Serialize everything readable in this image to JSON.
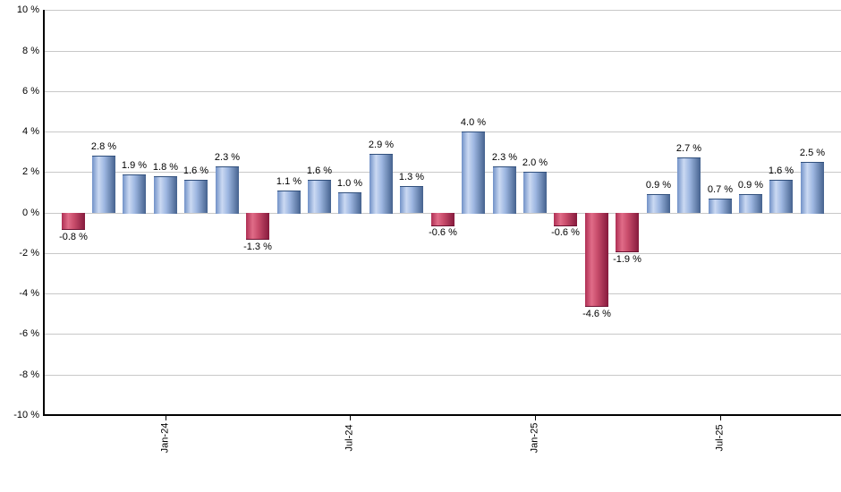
{
  "chart_data": {
    "type": "bar",
    "title": "",
    "xlabel": "",
    "ylabel": "",
    "ylim": [
      -10,
      10
    ],
    "grid": true,
    "legend": "none",
    "y_tick_step_pct": 2,
    "y_ticks": [
      "10 %",
      "8 %",
      "6 %",
      "4 %",
      "2 %",
      "0 %",
      "-2 %",
      "-4 %",
      "-6 %",
      "-8 %",
      "-10 %"
    ],
    "y_tick_values": [
      10,
      8,
      6,
      4,
      2,
      0,
      -2,
      -4,
      -6,
      -8,
      -10
    ],
    "values": [
      -0.8,
      2.8,
      1.9,
      1.8,
      1.6,
      2.3,
      -1.3,
      1.1,
      1.6,
      1.0,
      2.9,
      1.3,
      -0.6,
      4.0,
      2.3,
      2.0,
      -0.6,
      -4.6,
      -1.9,
      0.9,
      2.7,
      0.7,
      0.9,
      1.6,
      2.5
    ],
    "value_labels": [
      "-0.8 %",
      "2.8 %",
      "1.9 %",
      "1.8 %",
      "1.6 %",
      "2.3 %",
      "-1.3 %",
      "1.1 %",
      "1.6 %",
      "1.0 %",
      "2.9 %",
      "1.3 %",
      "-0.6 %",
      "4.0 %",
      "2.3 %",
      "2.0 %",
      "-0.6 %",
      "-4.6 %",
      "-1.9 %",
      "0.9 %",
      "2.7 %",
      "0.7 %",
      "0.9 %",
      "1.6 %",
      "2.5 %"
    ],
    "x_ticks": [
      {
        "index": 3,
        "label": "Jan-24"
      },
      {
        "index": 9,
        "label": "Jul-24"
      },
      {
        "index": 15,
        "label": "Jan-25"
      },
      {
        "index": 21,
        "label": "Jul-25"
      }
    ],
    "colors": {
      "background": "#ffffff",
      "grid": "#c8c8c8",
      "axis": "#000000",
      "label_text": "#000000",
      "positive_gradient": [
        "#7191c7",
        "#cbd9f2",
        "#9fb8e2",
        "#45628e"
      ],
      "positive_edge": "#31507d",
      "negative_gradient": [
        "#af2f54",
        "#e06c88",
        "#c94d6c",
        "#851a3c"
      ],
      "negative_edge": "#6b1232"
    }
  }
}
